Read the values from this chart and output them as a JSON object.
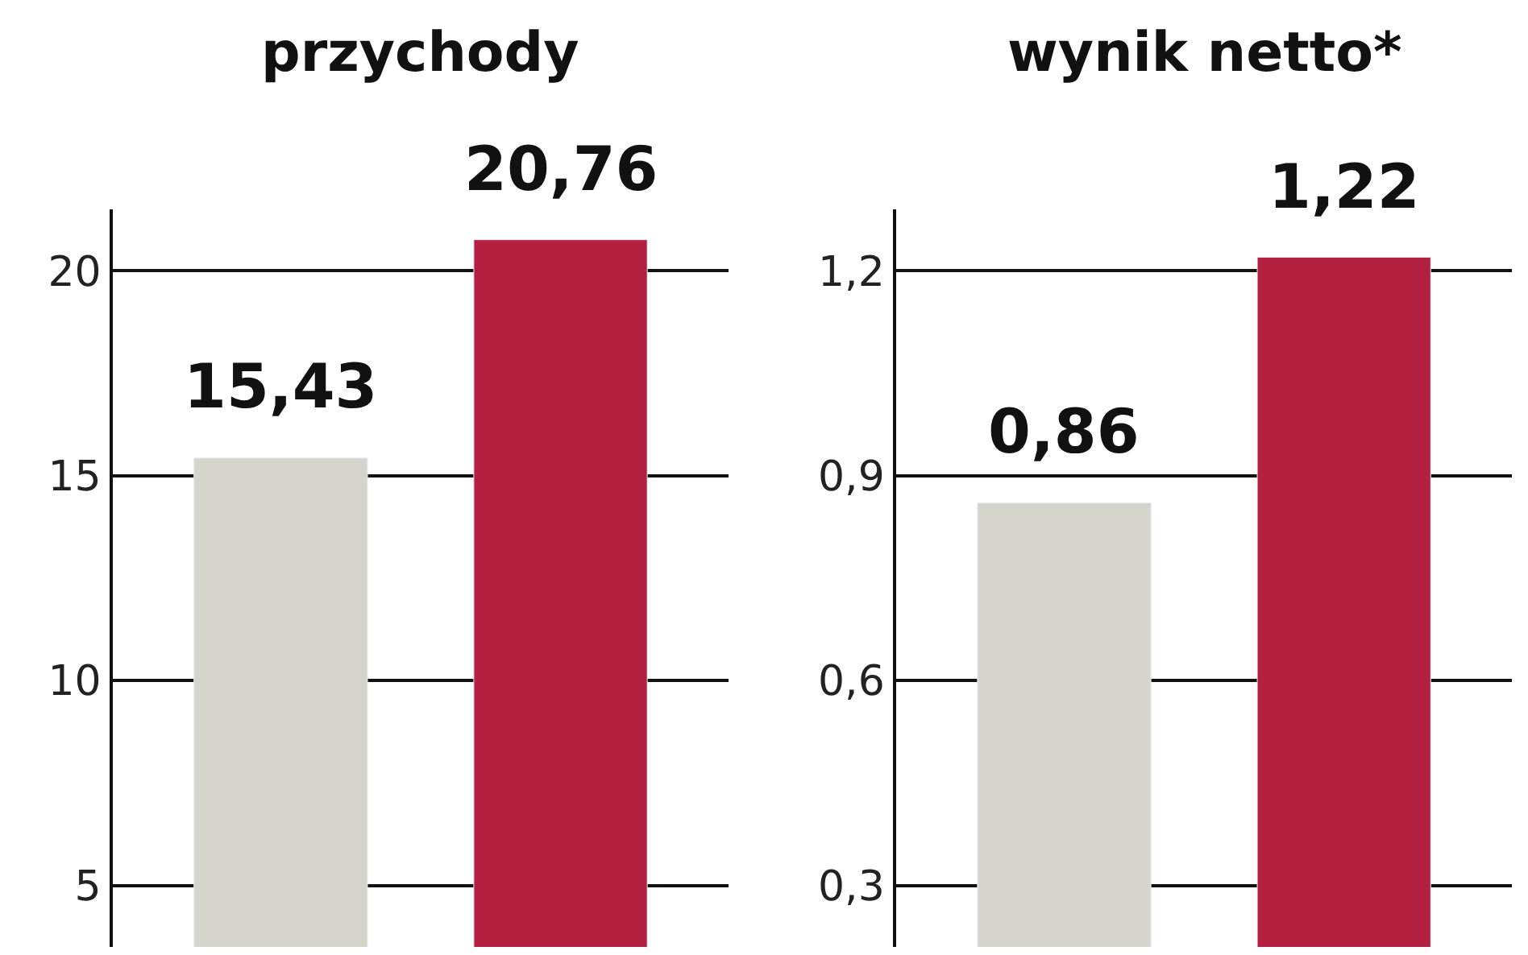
{
  "chart_data": [
    {
      "type": "bar",
      "title": "przychody",
      "categories": [
        null,
        null
      ],
      "values": [
        15.43,
        20.76
      ],
      "colors": [
        "#d5d5cc",
        "#b22140"
      ],
      "value_labels": [
        "15,43",
        "20,76"
      ],
      "ylim": [
        3.5,
        21.5
      ],
      "yticks": [
        5,
        10,
        15,
        20
      ],
      "grid": "y",
      "tick_labels": "y"
    },
    {
      "type": "bar",
      "title": "wynik netto*",
      "categories": [
        null,
        null
      ],
      "values": [
        0.86,
        1.22
      ],
      "colors": [
        "#d5d5cc",
        "#b22140"
      ],
      "value_labels": [
        "0,86",
        "1,22"
      ],
      "ylim": [
        0.21,
        1.29
      ],
      "yticks": [
        {
          "value": 0.3,
          "label": "0,3"
        },
        {
          "value": 0.6,
          "label": "0,6"
        },
        {
          "value": 0.9,
          "label": "0,9"
        },
        {
          "value": 1.2,
          "label": "1,2"
        }
      ],
      "grid": "y",
      "tick_labels": "y"
    }
  ]
}
